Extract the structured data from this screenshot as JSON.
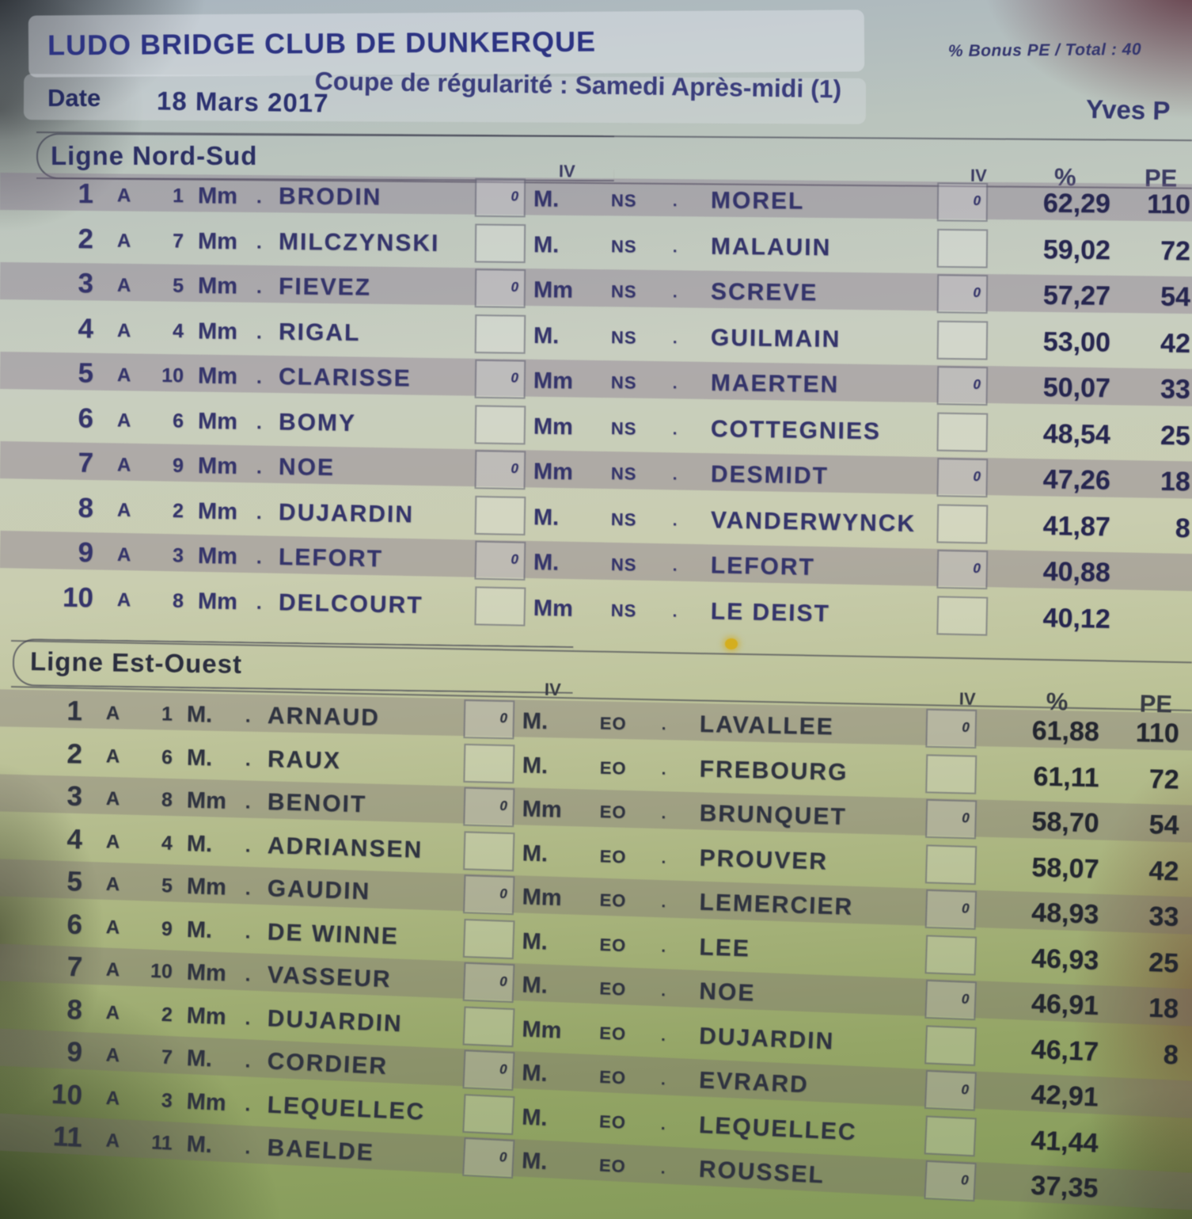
{
  "header": {
    "club": "LUDO BRIDGE CLUB DE DUNKERQUE",
    "bonus_note": "% Bonus PE / Total :  40",
    "event": "Coupe de régularité : Samedi  Après-midi (1)",
    "date_label": "Date",
    "date_value": "18 Mars 2017",
    "signature": "Yves P"
  },
  "columns": {
    "iv": "IV",
    "pct": "%",
    "pe": "PE"
  },
  "glyphs": {
    "leader_dot": "."
  },
  "sections": [
    {
      "title": "Ligne Nord-Sud",
      "line_code": "NS",
      "rows": [
        {
          "rank": "1",
          "cat": "A",
          "num": "1",
          "civ1": "Mm",
          "name1": "BRODIN",
          "iv1": "0",
          "civ2": "M.",
          "line": "NS",
          "name2": "MOREL",
          "iv2": "0",
          "pct": "62,29",
          "pe": "110"
        },
        {
          "rank": "2",
          "cat": "A",
          "num": "7",
          "civ1": "Mm",
          "name1": "MILCZYNSKI",
          "iv1": "",
          "civ2": "M.",
          "line": "NS",
          "name2": "MALAUIN",
          "iv2": "",
          "pct": "59,02",
          "pe": "72"
        },
        {
          "rank": "3",
          "cat": "A",
          "num": "5",
          "civ1": "Mm",
          "name1": "FIEVEZ",
          "iv1": "0",
          "civ2": "Mm",
          "line": "NS",
          "name2": "SCREVE",
          "iv2": "0",
          "pct": "57,27",
          "pe": "54"
        },
        {
          "rank": "4",
          "cat": "A",
          "num": "4",
          "civ1": "Mm",
          "name1": "RIGAL",
          "iv1": "",
          "civ2": "M.",
          "line": "NS",
          "name2": "GUILMAIN",
          "iv2": "",
          "pct": "53,00",
          "pe": "42"
        },
        {
          "rank": "5",
          "cat": "A",
          "num": "10",
          "civ1": "Mm",
          "name1": "CLARISSE",
          "iv1": "0",
          "civ2": "Mm",
          "line": "NS",
          "name2": "MAERTEN",
          "iv2": "0",
          "pct": "50,07",
          "pe": "33"
        },
        {
          "rank": "6",
          "cat": "A",
          "num": "6",
          "civ1": "Mm",
          "name1": "BOMY",
          "iv1": "",
          "civ2": "Mm",
          "line": "NS",
          "name2": "COTTEGNIES",
          "iv2": "",
          "pct": "48,54",
          "pe": "25"
        },
        {
          "rank": "7",
          "cat": "A",
          "num": "9",
          "civ1": "Mm",
          "name1": "NOE",
          "iv1": "0",
          "civ2": "Mm",
          "line": "NS",
          "name2": "DESMIDT",
          "iv2": "0",
          "pct": "47,26",
          "pe": "18"
        },
        {
          "rank": "8",
          "cat": "A",
          "num": "2",
          "civ1": "Mm",
          "name1": "DUJARDIN",
          "iv1": "",
          "civ2": "M.",
          "line": "NS",
          "name2": "VANDERWYNCK",
          "iv2": "",
          "pct": "41,87",
          "pe": "8"
        },
        {
          "rank": "9",
          "cat": "A",
          "num": "3",
          "civ1": "Mm",
          "name1": "LEFORT",
          "iv1": "0",
          "civ2": "M.",
          "line": "NS",
          "name2": "LEFORT",
          "iv2": "0",
          "pct": "40,88",
          "pe": ""
        },
        {
          "rank": "10",
          "cat": "A",
          "num": "8",
          "civ1": "Mm",
          "name1": "DELCOURT",
          "iv1": "",
          "civ2": "Mm",
          "line": "NS",
          "name2": "LE DEIST",
          "iv2": "",
          "pct": "40,12",
          "pe": ""
        }
      ]
    },
    {
      "title": "Ligne Est-Ouest",
      "line_code": "EO",
      "rows": [
        {
          "rank": "1",
          "cat": "A",
          "num": "1",
          "civ1": "M.",
          "name1": "ARNAUD",
          "iv1": "0",
          "civ2": "M.",
          "line": "EO",
          "name2": "LAVALLEE",
          "iv2": "0",
          "pct": "61,88",
          "pe": "110"
        },
        {
          "rank": "2",
          "cat": "A",
          "num": "6",
          "civ1": "M.",
          "name1": "RAUX",
          "iv1": "",
          "civ2": "M.",
          "line": "EO",
          "name2": "FREBOURG",
          "iv2": "",
          "pct": "61,11",
          "pe": "72"
        },
        {
          "rank": "3",
          "cat": "A",
          "num": "8",
          "civ1": "Mm",
          "name1": "BENOIT",
          "iv1": "0",
          "civ2": "Mm",
          "line": "EO",
          "name2": "BRUNQUET",
          "iv2": "0",
          "pct": "58,70",
          "pe": "54"
        },
        {
          "rank": "4",
          "cat": "A",
          "num": "4",
          "civ1": "M.",
          "name1": "ADRIANSEN",
          "iv1": "",
          "civ2": "M.",
          "line": "EO",
          "name2": "PROUVER",
          "iv2": "",
          "pct": "58,07",
          "pe": "42"
        },
        {
          "rank": "5",
          "cat": "A",
          "num": "5",
          "civ1": "Mm",
          "name1": "GAUDIN",
          "iv1": "0",
          "civ2": "Mm",
          "line": "EO",
          "name2": "LEMERCIER",
          "iv2": "0",
          "pct": "48,93",
          "pe": "33"
        },
        {
          "rank": "6",
          "cat": "A",
          "num": "9",
          "civ1": "M.",
          "name1": "DE WINNE",
          "iv1": "",
          "civ2": "M.",
          "line": "EO",
          "name2": "LEE",
          "iv2": "",
          "pct": "46,93",
          "pe": "25"
        },
        {
          "rank": "7",
          "cat": "A",
          "num": "10",
          "civ1": "Mm",
          "name1": "VASSEUR",
          "iv1": "0",
          "civ2": "M.",
          "line": "EO",
          "name2": "NOE",
          "iv2": "0",
          "pct": "46,91",
          "pe": "18"
        },
        {
          "rank": "8",
          "cat": "A",
          "num": "2",
          "civ1": "Mm",
          "name1": "DUJARDIN",
          "iv1": "",
          "civ2": "Mm",
          "line": "EO",
          "name2": "DUJARDIN",
          "iv2": "",
          "pct": "46,17",
          "pe": "8"
        },
        {
          "rank": "9",
          "cat": "A",
          "num": "7",
          "civ1": "M.",
          "name1": "CORDIER",
          "iv1": "0",
          "civ2": "M.",
          "line": "EO",
          "name2": "EVRARD",
          "iv2": "0",
          "pct": "42,91",
          "pe": ""
        },
        {
          "rank": "10",
          "cat": "A",
          "num": "3",
          "civ1": "Mm",
          "name1": "LEQUELLEC",
          "iv1": "",
          "civ2": "M.",
          "line": "EO",
          "name2": "LEQUELLEC",
          "iv2": "",
          "pct": "41,44",
          "pe": ""
        },
        {
          "rank": "11",
          "cat": "A",
          "num": "11",
          "civ1": "M.",
          "name1": "BAELDE",
          "iv1": "0",
          "civ2": "M.",
          "line": "EO",
          "name2": "ROUSSEL",
          "iv2": "0",
          "pct": "37,35",
          "pe": ""
        }
      ]
    }
  ]
}
